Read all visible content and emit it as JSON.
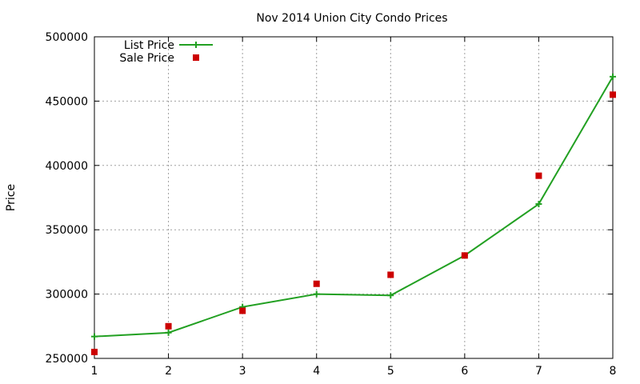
{
  "chart_data": {
    "type": "line",
    "title": "Nov 2014 Union City Condo Prices",
    "xlabel": "",
    "ylabel": "Price",
    "xlim": [
      1,
      8
    ],
    "ylim": [
      250000,
      500000
    ],
    "x_ticks": [
      "1",
      "2",
      "3",
      "4",
      "5",
      "6",
      "7",
      "8"
    ],
    "y_ticks": [
      "250000",
      "300000",
      "350000",
      "400000",
      "450000",
      "500000"
    ],
    "grid": true,
    "legend_position": "top-left",
    "x": [
      1,
      2,
      3,
      4,
      5,
      6,
      7,
      8
    ],
    "series": [
      {
        "name": "List Price",
        "style": "line-plus",
        "color": "#22a022",
        "values": [
          267000,
          270000,
          290000,
          300000,
          299000,
          330000,
          370000,
          469000
        ]
      },
      {
        "name": "Sale Price",
        "style": "square",
        "color": "#cc0000",
        "values": [
          255000,
          275000,
          287000,
          308000,
          315000,
          330000,
          392000,
          455000
        ]
      }
    ]
  }
}
